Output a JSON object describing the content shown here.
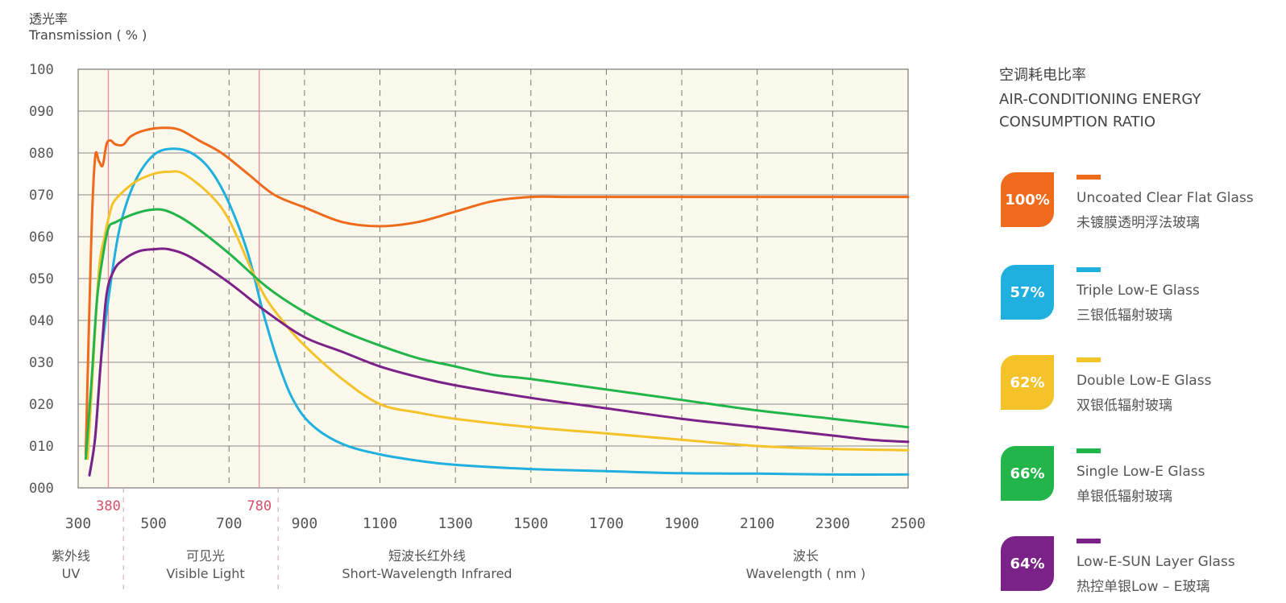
{
  "y_axis": {
    "label_cn": "透光率",
    "label_en": "Transmission ( % )"
  },
  "bands": [
    {
      "cn": "紫外线",
      "en": "UV"
    },
    {
      "cn": "可见光",
      "en": "Visible Light"
    },
    {
      "cn": "短波长红外线",
      "en": "Short-Wavelength Infrared"
    },
    {
      "cn": "波长",
      "en": "Wavelength ( nm )"
    }
  ],
  "legend": {
    "title_cn": "空调耗电比率",
    "title_en_1": "AIR-CONDITIONING ENERGY",
    "title_en_2": "CONSUMPTION RATIO",
    "items": [
      {
        "percent": "100%",
        "en": "Uncoated Clear Flat Glass",
        "cn": "未镀膜透明浮法玻璃",
        "color": "#ef6a1b"
      },
      {
        "percent": "57%",
        "en": "Triple Low-E Glass",
        "cn": "三银低辐射玻璃",
        "color": "#20b0df"
      },
      {
        "percent": "62%",
        "en": "Double Low-E Glass",
        "cn": "双银低辐射玻璃",
        "color": "#f3c329"
      },
      {
        "percent": "66%",
        "en": "Single Low-E Glass",
        "cn": "单银低辐射玻璃",
        "color": "#21b54a"
      },
      {
        "percent": "64%",
        "en": "Low-E-SUN Layer Glass",
        "cn": "热控单银Low – E玻璃",
        "color": "#7a2287"
      }
    ]
  },
  "chart_data": {
    "type": "line",
    "xlim": [
      300,
      2500
    ],
    "ylim": [
      0,
      100
    ],
    "x_ticks": [
      "300",
      "500",
      "700",
      "900",
      "1100",
      "1300",
      "1500",
      "1700",
      "1900",
      "2100",
      "2300",
      "2500"
    ],
    "y_ticks": [
      "000",
      "010",
      "020",
      "030",
      "040",
      "050",
      "060",
      "070",
      "080",
      "090",
      "100"
    ],
    "markers": [
      {
        "x": 380,
        "label": "380"
      },
      {
        "x": 780,
        "label": "780"
      }
    ],
    "series": [
      {
        "name": "Uncoated Clear Flat Glass",
        "color": "#ef6a1b",
        "points": [
          [
            320,
            8
          ],
          [
            335,
            60
          ],
          [
            345,
            79
          ],
          [
            355,
            78
          ],
          [
            365,
            77
          ],
          [
            375,
            82
          ],
          [
            385,
            83
          ],
          [
            400,
            82
          ],
          [
            420,
            82
          ],
          [
            440,
            84
          ],
          [
            480,
            85.5
          ],
          [
            530,
            86
          ],
          [
            570,
            85.5
          ],
          [
            620,
            83
          ],
          [
            680,
            80
          ],
          [
            750,
            75
          ],
          [
            820,
            70
          ],
          [
            900,
            67
          ],
          [
            1000,
            63.5
          ],
          [
            1100,
            62.5
          ],
          [
            1200,
            63.5
          ],
          [
            1300,
            66
          ],
          [
            1400,
            68.5
          ],
          [
            1500,
            69.5
          ],
          [
            1600,
            69.5
          ],
          [
            1800,
            69.5
          ],
          [
            2000,
            69.5
          ],
          [
            2200,
            69.5
          ],
          [
            2500,
            69.5
          ]
        ]
      },
      {
        "name": "Triple Low-E Glass",
        "color": "#20b0df",
        "points": [
          [
            330,
            3
          ],
          [
            345,
            12
          ],
          [
            360,
            30
          ],
          [
            380,
            45
          ],
          [
            410,
            62
          ],
          [
            450,
            73
          ],
          [
            500,
            79.5
          ],
          [
            550,
            81
          ],
          [
            600,
            80
          ],
          [
            650,
            76
          ],
          [
            700,
            68
          ],
          [
            750,
            56
          ],
          [
            790,
            42
          ],
          [
            830,
            30
          ],
          [
            870,
            21
          ],
          [
            920,
            15
          ],
          [
            1000,
            10.5
          ],
          [
            1100,
            8
          ],
          [
            1200,
            6.5
          ],
          [
            1300,
            5.5
          ],
          [
            1500,
            4.5
          ],
          [
            1700,
            4
          ],
          [
            1900,
            3.5
          ],
          [
            2100,
            3.4
          ],
          [
            2300,
            3.2
          ],
          [
            2500,
            3.2
          ]
        ]
      },
      {
        "name": "Double Low-E Glass",
        "color": "#f3c329",
        "points": [
          [
            325,
            7
          ],
          [
            340,
            30
          ],
          [
            355,
            52
          ],
          [
            370,
            60
          ],
          [
            385,
            66
          ],
          [
            400,
            69
          ],
          [
            450,
            73
          ],
          [
            500,
            75
          ],
          [
            540,
            75.5
          ],
          [
            580,
            75
          ],
          [
            650,
            70
          ],
          [
            700,
            64
          ],
          [
            760,
            52
          ],
          [
            800,
            45
          ],
          [
            850,
            39
          ],
          [
            900,
            34
          ],
          [
            1000,
            26
          ],
          [
            1100,
            20
          ],
          [
            1200,
            18
          ],
          [
            1300,
            16.5
          ],
          [
            1500,
            14.5
          ],
          [
            1700,
            13
          ],
          [
            1900,
            11.5
          ],
          [
            2100,
            10
          ],
          [
            2300,
            9.3
          ],
          [
            2500,
            9
          ]
        ]
      },
      {
        "name": "Single Low-E Glass",
        "color": "#21b54a",
        "points": [
          [
            320,
            7
          ],
          [
            335,
            25
          ],
          [
            350,
            45
          ],
          [
            365,
            55
          ],
          [
            380,
            62
          ],
          [
            400,
            63.5
          ],
          [
            450,
            65.5
          ],
          [
            500,
            66.5
          ],
          [
            540,
            66
          ],
          [
            600,
            63
          ],
          [
            700,
            56
          ],
          [
            800,
            48
          ],
          [
            900,
            42
          ],
          [
            1000,
            37.5
          ],
          [
            1100,
            34
          ],
          [
            1200,
            31
          ],
          [
            1300,
            29
          ],
          [
            1400,
            27
          ],
          [
            1500,
            26
          ],
          [
            1700,
            23.5
          ],
          [
            1900,
            21
          ],
          [
            2100,
            18.5
          ],
          [
            2300,
            16.5
          ],
          [
            2500,
            14.5
          ]
        ]
      },
      {
        "name": "Low-E-SUN Layer Glass",
        "color": "#7a2287",
        "points": [
          [
            330,
            3
          ],
          [
            345,
            12
          ],
          [
            360,
            30
          ],
          [
            375,
            46
          ],
          [
            395,
            52
          ],
          [
            420,
            54.5
          ],
          [
            460,
            56.5
          ],
          [
            500,
            57
          ],
          [
            540,
            57
          ],
          [
            600,
            55
          ],
          [
            700,
            49
          ],
          [
            800,
            42
          ],
          [
            900,
            36
          ],
          [
            1000,
            32.5
          ],
          [
            1100,
            29
          ],
          [
            1200,
            26.5
          ],
          [
            1300,
            24.5
          ],
          [
            1500,
            21.5
          ],
          [
            1700,
            19
          ],
          [
            1900,
            16.5
          ],
          [
            2100,
            14.5
          ],
          [
            2300,
            12.5
          ],
          [
            2400,
            11.5
          ],
          [
            2500,
            11
          ]
        ]
      }
    ]
  }
}
